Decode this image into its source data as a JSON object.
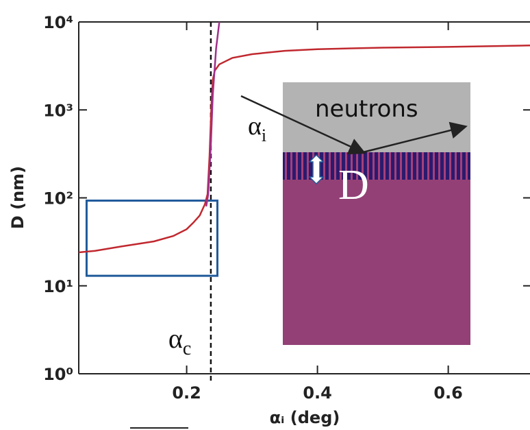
{
  "chart_data": {
    "type": "line",
    "x_label": "αᵢ (deg)",
    "y_label": "D (nm)",
    "xlim": [
      0.035,
      0.725
    ],
    "ylim": [
      1,
      10000
    ],
    "log_y": true,
    "xticks": [
      0.2,
      0.4,
      0.6
    ],
    "yticks": [
      {
        "value": 1,
        "label": "10⁰"
      },
      {
        "value": 10,
        "label": "10¹"
      },
      {
        "value": 100,
        "label": "10²"
      },
      {
        "value": 1000,
        "label": "10³"
      },
      {
        "value": 10000,
        "label": "10⁴"
      }
    ],
    "series": [
      {
        "color": "#c0282e",
        "x": [
          0.035,
          0.06,
          0.1,
          0.15,
          0.18,
          0.2,
          0.21,
          0.22,
          0.228,
          0.232,
          0.235,
          0.238,
          0.24,
          0.243,
          0.25,
          0.27,
          0.3,
          0.35,
          0.4,
          0.5,
          0.6,
          0.725
        ],
        "values": [
          24,
          25,
          28,
          32,
          37,
          44,
          52,
          63,
          85,
          110,
          300,
          1200,
          2200,
          2800,
          3300,
          3900,
          4300,
          4700,
          4900,
          5100,
          5200,
          5400
        ]
      },
      {
        "color": "#a0308a",
        "x": [
          0.23,
          0.233,
          0.237,
          0.24,
          0.245,
          0.25
        ],
        "values": [
          80,
          110,
          400,
          1500,
          5000,
          10000
        ]
      }
    ],
    "critical_angle": 0.237,
    "critical_label": {
      "text": "α",
      "sub": "c"
    },
    "highlight_box": {
      "color": "#1f5a9a",
      "x": [
        0.047,
        0.247
      ],
      "y": [
        13,
        93
      ]
    },
    "inset": {
      "label": "neutrons",
      "angle_label": {
        "text": "α",
        "sub": "i"
      },
      "thickness_label": "D"
    }
  }
}
